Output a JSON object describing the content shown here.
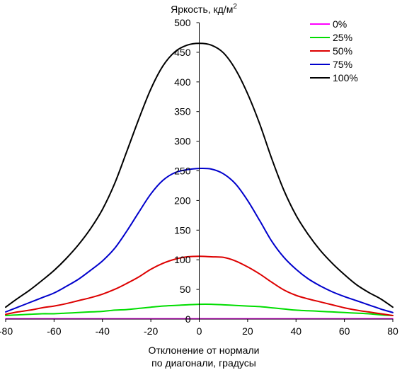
{
  "chart_data": {
    "type": "line",
    "title": "",
    "ylabel": "Яркость, кд/м",
    "ylabel_superscript": "2",
    "xlabel_line1": "Отклонение от нормали",
    "xlabel_line2": "по диагонали, градусы",
    "xlim": [
      -80,
      80
    ],
    "ylim": [
      0,
      500
    ],
    "x_ticks": [
      "-80",
      "-60",
      "-40",
      "-20",
      "0",
      "20",
      "40",
      "60",
      "80"
    ],
    "y_ticks": [
      "0",
      "50",
      "100",
      "150",
      "200",
      "250",
      "300",
      "350",
      "400",
      "450",
      "500"
    ],
    "grid": false,
    "legend_position": "top-right",
    "x": [
      -80,
      -75,
      -70,
      -65,
      -60,
      -55,
      -50,
      -45,
      -40,
      -35,
      -30,
      -25,
      -20,
      -15,
      -10,
      -5,
      0,
      5,
      10,
      15,
      20,
      25,
      30,
      35,
      40,
      45,
      50,
      55,
      60,
      65,
      70,
      75,
      80
    ],
    "series": [
      {
        "name": "0%",
        "color": "#ff00ff",
        "values": [
          0.5,
          0.5,
          0.5,
          0.5,
          0.5,
          0.5,
          0.5,
          0.5,
          0.5,
          0.5,
          0.5,
          0.5,
          0.5,
          0.5,
          0.5,
          0.5,
          0.5,
          0.5,
          0.5,
          0.5,
          0.5,
          0.5,
          0.5,
          0.5,
          0.5,
          0.5,
          0.5,
          0.5,
          0.5,
          0.5,
          0.5,
          0.5,
          0.5
        ]
      },
      {
        "name": "25%",
        "color": "#00dd00",
        "values": [
          6,
          7,
          8,
          9,
          9,
          10,
          11,
          12,
          13,
          15,
          16,
          18,
          20,
          22,
          23,
          24,
          25,
          25,
          24,
          23,
          22,
          21,
          19,
          17,
          15,
          14,
          13,
          12,
          11,
          10,
          9,
          7,
          6
        ]
      },
      {
        "name": "50%",
        "color": "#dd0000",
        "values": [
          8,
          12,
          15,
          19,
          22,
          26,
          31,
          36,
          42,
          50,
          60,
          71,
          84,
          94,
          101,
          105,
          106,
          105,
          104,
          98,
          88,
          76,
          62,
          49,
          40,
          34,
          29,
          24,
          19,
          15,
          12,
          9,
          6
        ]
      },
      {
        "name": "75%",
        "color": "#0000cc",
        "values": [
          12,
          20,
          28,
          36,
          44,
          55,
          67,
          82,
          98,
          119,
          148,
          180,
          211,
          234,
          247,
          252,
          254,
          253,
          245,
          228,
          200,
          166,
          131,
          104,
          84,
          68,
          56,
          46,
          38,
          31,
          24,
          17,
          11
        ]
      },
      {
        "name": "100%",
        "color": "#000000",
        "values": [
          20,
          35,
          49,
          65,
          82,
          102,
          125,
          152,
          185,
          228,
          282,
          337,
          388,
          427,
          451,
          462,
          465,
          462,
          449,
          421,
          380,
          329,
          270,
          217,
          175,
          143,
          116,
          94,
          75,
          58,
          45,
          34,
          20
        ]
      }
    ]
  }
}
